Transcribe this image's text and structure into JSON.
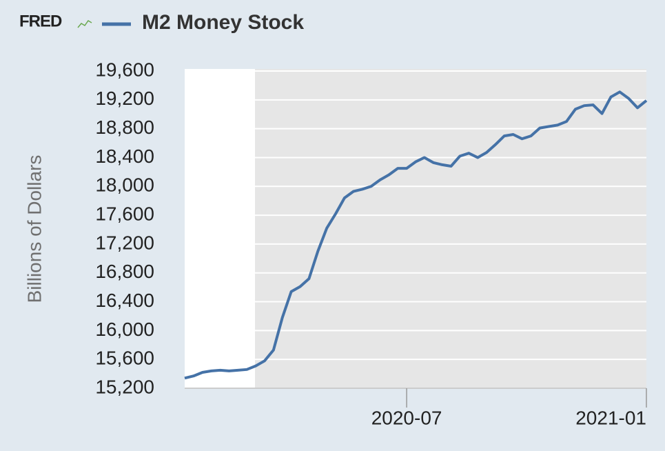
{
  "logo": "FRED",
  "chart_data": {
    "type": "line",
    "title": "M2 Money Stock",
    "ylabel": "Billions of Dollars",
    "categories": [
      null,
      null,
      null,
      null,
      null,
      null,
      null,
      null,
      null,
      null,
      null,
      null,
      null,
      null,
      null,
      null,
      null,
      null,
      null,
      null,
      null,
      null,
      null,
      null,
      null,
      "2020-07",
      null,
      null,
      null,
      null,
      null,
      null,
      null,
      null,
      null,
      null,
      null,
      null,
      null,
      null,
      null,
      null,
      null,
      null,
      null,
      null,
      null,
      null,
      null,
      null,
      null,
      null,
      "2021-01"
    ],
    "series": [
      {
        "name": "M2 Money Stock",
        "color": "#4572a7",
        "values": [
          15340,
          15370,
          15420,
          15440,
          15450,
          15440,
          15450,
          15460,
          15510,
          15580,
          15730,
          16180,
          16540,
          16610,
          16720,
          17100,
          17420,
          17620,
          17840,
          17930,
          17960,
          18000,
          18090,
          18160,
          18250,
          18250,
          18340,
          18400,
          18330,
          18300,
          18280,
          18420,
          18460,
          18400,
          18470,
          18580,
          18700,
          18720,
          18660,
          18700,
          18810,
          18830,
          18850,
          18900,
          19070,
          19120,
          19130,
          19010,
          19240,
          19310,
          19220,
          19090,
          19190
        ]
      }
    ],
    "ylim": [
      15200,
      19600
    ],
    "yticks": [
      {
        "value": 15200,
        "label": "15,200"
      },
      {
        "value": 15600,
        "label": "15,600"
      },
      {
        "value": 16000,
        "label": "16,000"
      },
      {
        "value": 16400,
        "label": "16,400"
      },
      {
        "value": 16800,
        "label": "16,800"
      },
      {
        "value": 17200,
        "label": "17,200"
      },
      {
        "value": 17600,
        "label": "17,600"
      },
      {
        "value": 18000,
        "label": "18,000"
      },
      {
        "value": 18400,
        "label": "18,400"
      },
      {
        "value": 18800,
        "label": "18,800"
      },
      {
        "value": 19200,
        "label": "19,200"
      },
      {
        "value": 19600,
        "label": "19,600"
      }
    ],
    "grid": true
  }
}
